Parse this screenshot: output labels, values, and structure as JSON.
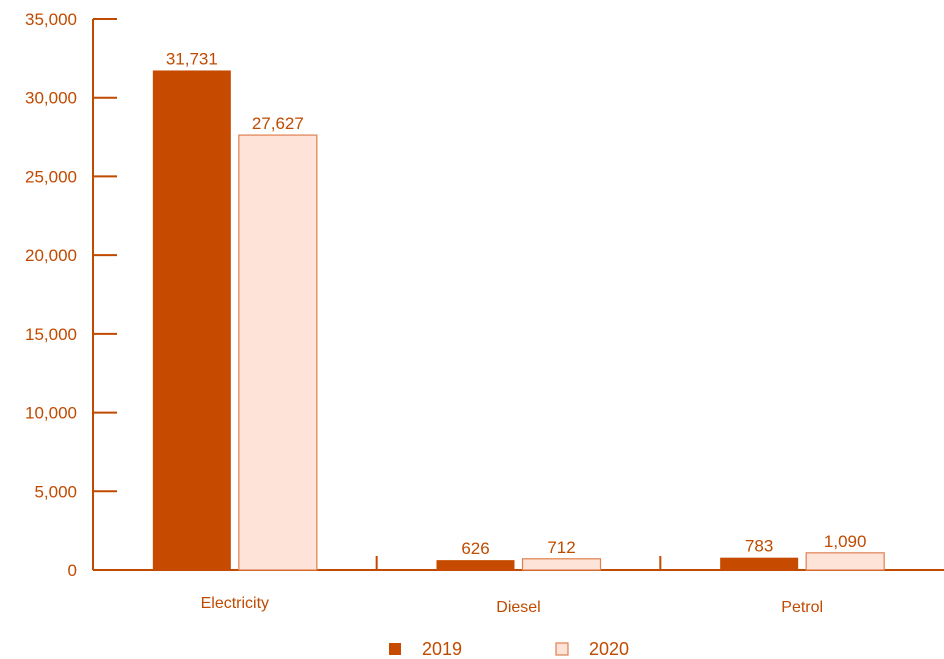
{
  "chart_data": {
    "type": "bar",
    "title": "",
    "xlabel": "",
    "ylabel": "",
    "categories": [
      "Electricity",
      "Diesel",
      "Petrol"
    ],
    "series": [
      {
        "name": "2019",
        "values": [
          31731,
          626,
          783
        ],
        "value_labels": [
          "31,731",
          "626",
          "783"
        ]
      },
      {
        "name": "2020",
        "values": [
          27627,
          712,
          1090
        ],
        "value_labels": [
          "27,627",
          "712",
          "1,090"
        ]
      }
    ],
    "ylim": [
      0,
      35000
    ],
    "yticks": [
      0,
      5000,
      10000,
      15000,
      20000,
      25000,
      30000,
      35000
    ],
    "ytick_labels": [
      "0",
      "5,000",
      "10,000",
      "15,000",
      "20,000",
      "25,000",
      "30,000",
      "35,000"
    ],
    "grid": false,
    "legend_position": "bottom-center"
  },
  "colors": {
    "axis": "#c04a00",
    "text": "#c04a00",
    "series_2019_fill": "#c64b00",
    "series_2020_fill": "#fde3d8",
    "series_2020_stroke": "#e08050"
  }
}
